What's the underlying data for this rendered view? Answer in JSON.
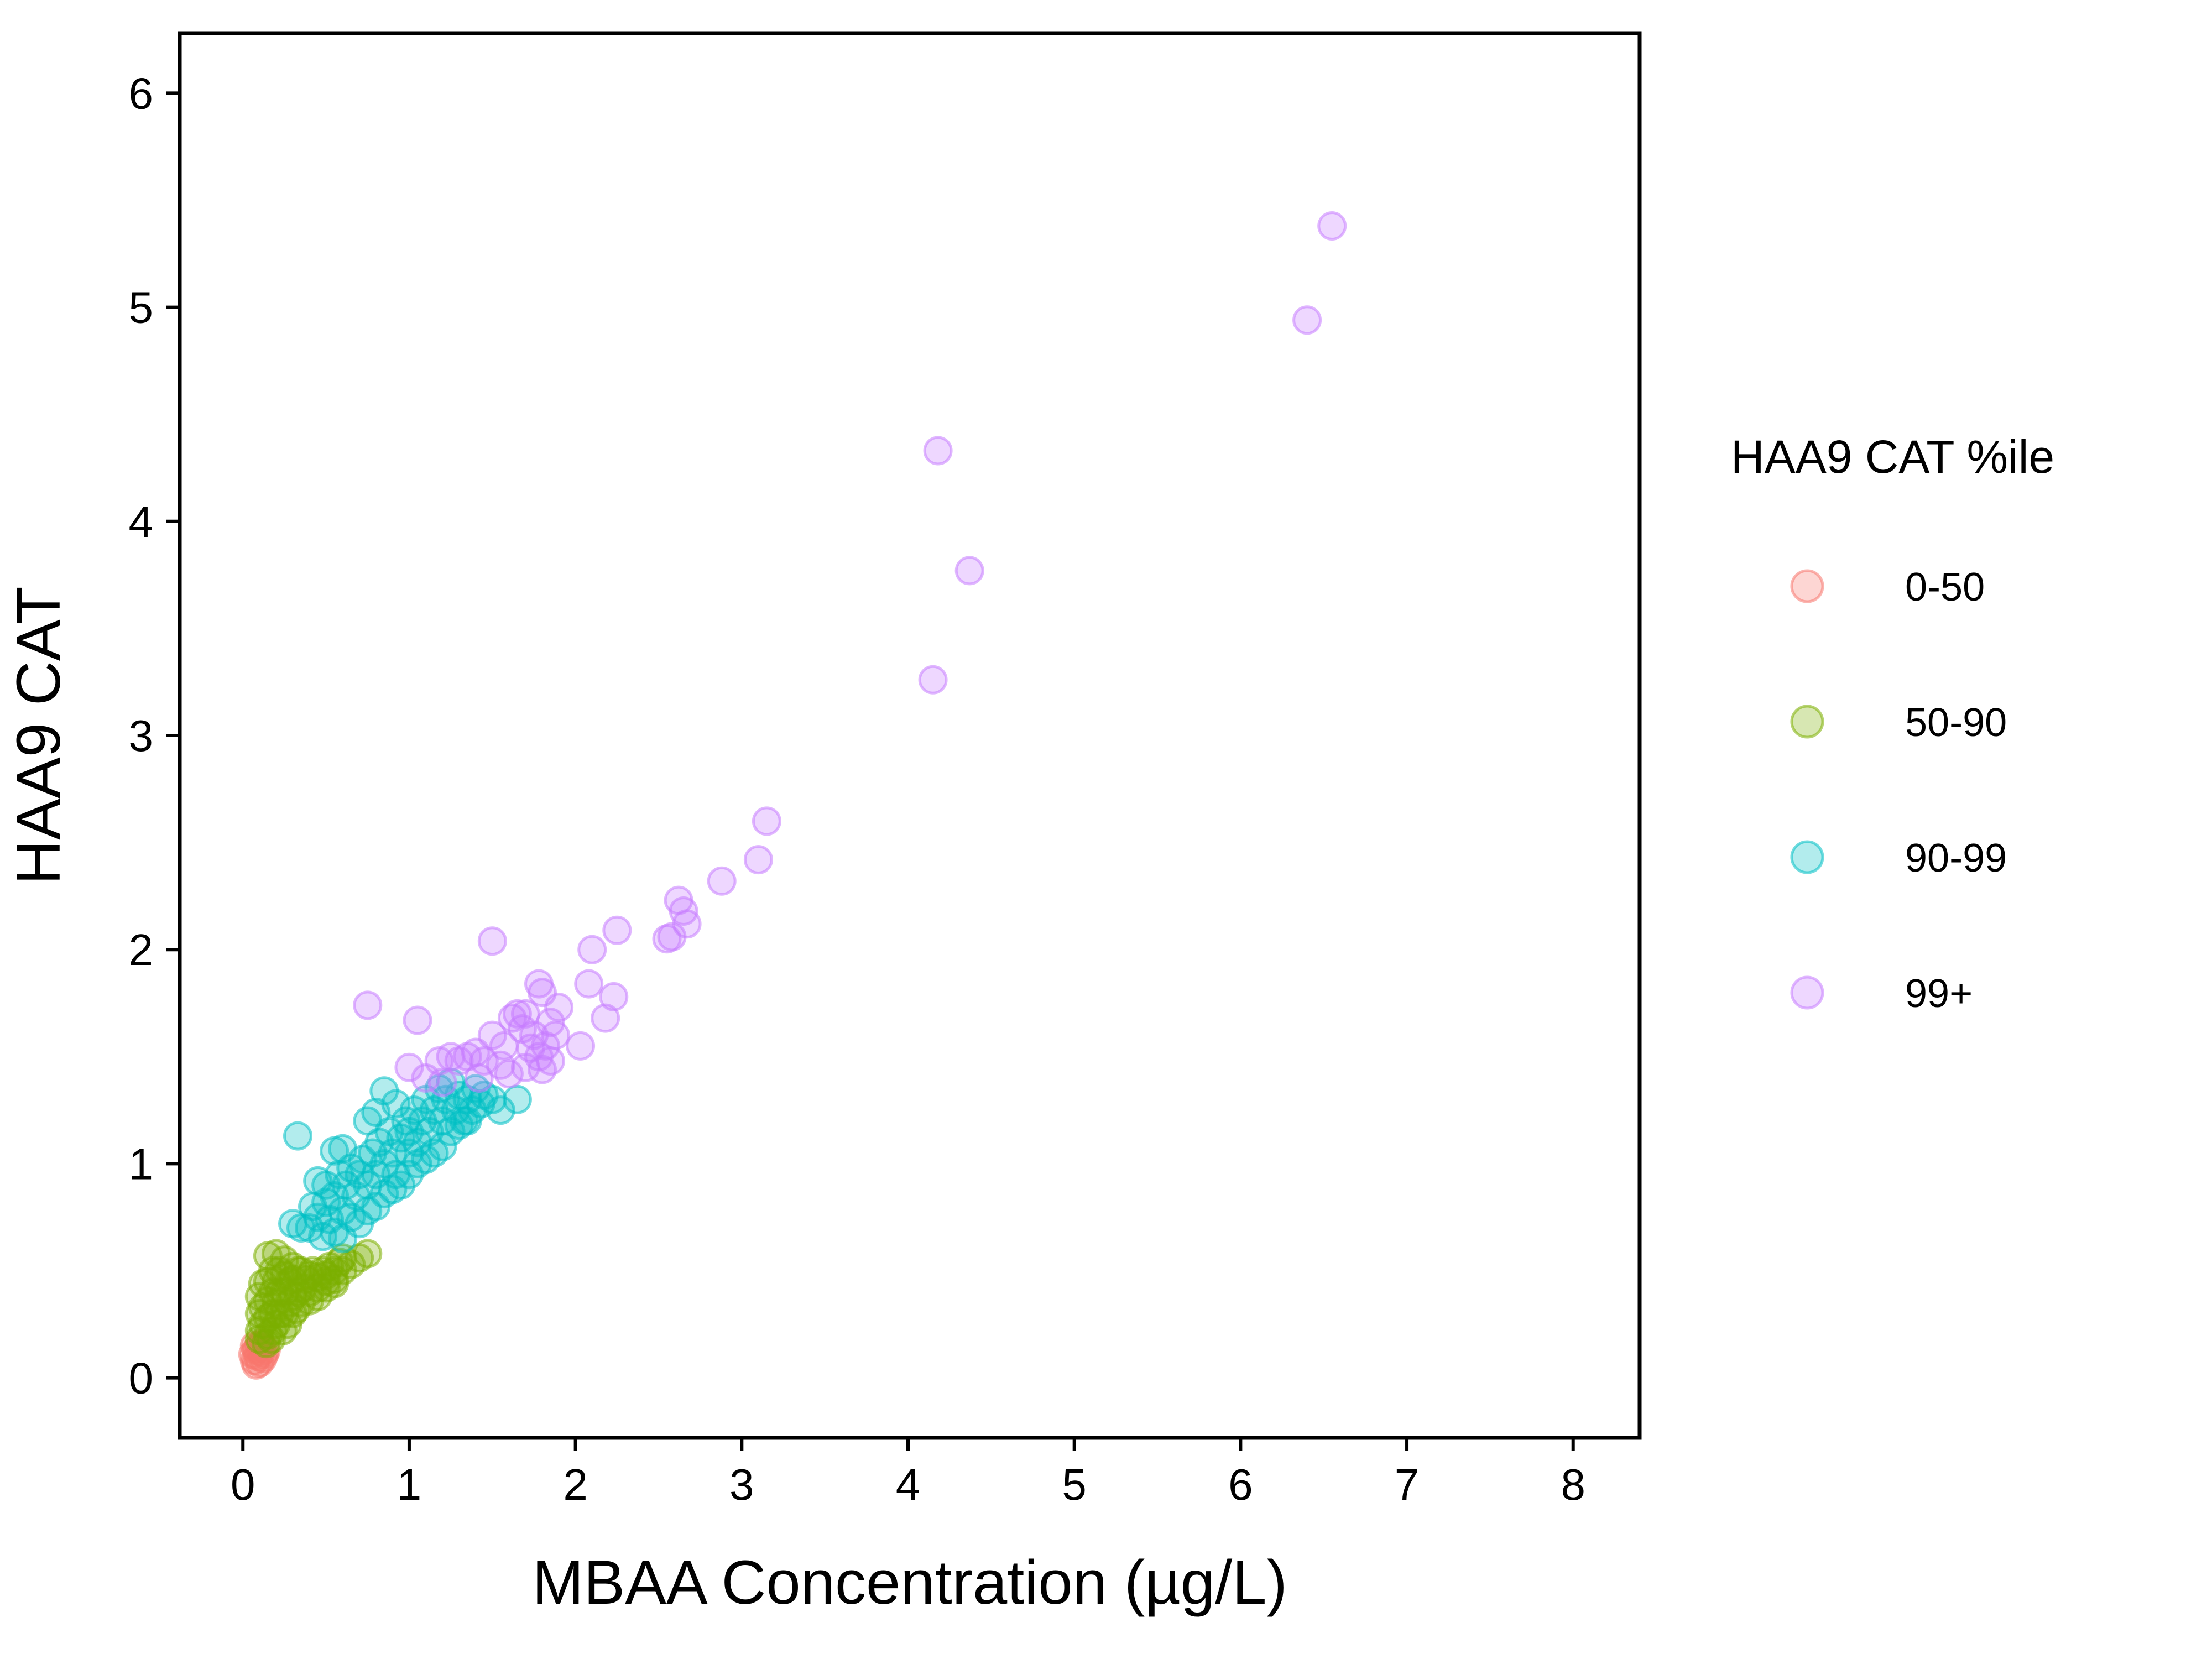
{
  "chart_data": {
    "type": "scatter",
    "title": "",
    "xlabel": "MBAA Concentration (µg/L)",
    "ylabel": "HAA9 CAT",
    "xlim": [
      -0.38,
      8.4
    ],
    "ylim": [
      -0.28,
      6.28
    ],
    "x_ticks": [
      0,
      1,
      2,
      3,
      4,
      5,
      6,
      7,
      8
    ],
    "y_ticks": [
      0,
      1,
      2,
      3,
      4,
      5,
      6
    ],
    "grid": false,
    "legend": {
      "title": "HAA9 CAT %ile",
      "placement": "right"
    },
    "series": [
      {
        "name": "0-50",
        "color": "#F8766D",
        "points": [
          [
            0.07,
            0.08
          ],
          [
            0.08,
            0.06
          ],
          [
            0.09,
            0.1
          ],
          [
            0.1,
            0.07
          ],
          [
            0.11,
            0.12
          ],
          [
            0.12,
            0.09
          ],
          [
            0.08,
            0.13
          ],
          [
            0.1,
            0.15
          ],
          [
            0.13,
            0.11
          ],
          [
            0.06,
            0.11
          ],
          [
            0.09,
            0.14
          ],
          [
            0.12,
            0.14
          ],
          [
            0.14,
            0.13
          ],
          [
            0.11,
            0.16
          ],
          [
            0.07,
            0.15
          ]
        ]
      },
      {
        "name": "50-90",
        "color": "#7CAE00",
        "points": [
          [
            0.1,
            0.38
          ],
          [
            0.12,
            0.44
          ],
          [
            0.15,
            0.57
          ],
          [
            0.2,
            0.58
          ],
          [
            0.25,
            0.55
          ],
          [
            0.3,
            0.52
          ],
          [
            0.35,
            0.5
          ],
          [
            0.4,
            0.48
          ],
          [
            0.45,
            0.47
          ],
          [
            0.5,
            0.45
          ],
          [
            0.55,
            0.44
          ],
          [
            0.6,
            0.5
          ],
          [
            0.65,
            0.53
          ],
          [
            0.7,
            0.56
          ],
          [
            0.75,
            0.58
          ],
          [
            0.1,
            0.3
          ],
          [
            0.1,
            0.22
          ],
          [
            0.1,
            0.18
          ],
          [
            0.12,
            0.25
          ],
          [
            0.12,
            0.33
          ],
          [
            0.15,
            0.2
          ],
          [
            0.15,
            0.28
          ],
          [
            0.15,
            0.36
          ],
          [
            0.15,
            0.45
          ],
          [
            0.18,
            0.22
          ],
          [
            0.18,
            0.3
          ],
          [
            0.18,
            0.4
          ],
          [
            0.18,
            0.5
          ],
          [
            0.2,
            0.25
          ],
          [
            0.2,
            0.35
          ],
          [
            0.2,
            0.45
          ],
          [
            0.22,
            0.3
          ],
          [
            0.22,
            0.4
          ],
          [
            0.22,
            0.5
          ],
          [
            0.25,
            0.3
          ],
          [
            0.25,
            0.4
          ],
          [
            0.25,
            0.48
          ],
          [
            0.28,
            0.35
          ],
          [
            0.28,
            0.45
          ],
          [
            0.3,
            0.38
          ],
          [
            0.3,
            0.46
          ],
          [
            0.33,
            0.4
          ],
          [
            0.33,
            0.5
          ],
          [
            0.36,
            0.42
          ],
          [
            0.38,
            0.46
          ],
          [
            0.4,
            0.4
          ],
          [
            0.42,
            0.5
          ],
          [
            0.45,
            0.42
          ],
          [
            0.48,
            0.5
          ],
          [
            0.5,
            0.48
          ],
          [
            0.52,
            0.52
          ],
          [
            0.55,
            0.5
          ],
          [
            0.58,
            0.54
          ],
          [
            0.6,
            0.56
          ],
          [
            0.3,
            0.3
          ],
          [
            0.35,
            0.35
          ],
          [
            0.4,
            0.36
          ],
          [
            0.27,
            0.25
          ],
          [
            0.32,
            0.32
          ],
          [
            0.17,
            0.18
          ],
          [
            0.14,
            0.16
          ],
          [
            0.24,
            0.22
          ],
          [
            0.45,
            0.38
          ],
          [
            0.5,
            0.42
          ],
          [
            0.55,
            0.46
          ]
        ]
      },
      {
        "name": "90-99",
        "color": "#00BFC4",
        "points": [
          [
            0.33,
            1.13
          ],
          [
            0.45,
            0.92
          ],
          [
            0.55,
            1.06
          ],
          [
            0.6,
            1.07
          ],
          [
            0.85,
            1.34
          ],
          [
            0.8,
            1.24
          ],
          [
            0.75,
            1.2
          ],
          [
            0.92,
            1.28
          ],
          [
            0.3,
            0.72
          ],
          [
            0.35,
            0.7
          ],
          [
            0.4,
            0.7
          ],
          [
            0.42,
            0.8
          ],
          [
            0.45,
            0.75
          ],
          [
            0.5,
            0.82
          ],
          [
            0.5,
            0.9
          ],
          [
            0.55,
            0.85
          ],
          [
            0.58,
            0.95
          ],
          [
            0.6,
            0.78
          ],
          [
            0.62,
            0.9
          ],
          [
            0.65,
            0.98
          ],
          [
            0.68,
            0.85
          ],
          [
            0.7,
            0.95
          ],
          [
            0.72,
            1.02
          ],
          [
            0.75,
            0.9
          ],
          [
            0.78,
            1.05
          ],
          [
            0.8,
            0.95
          ],
          [
            0.82,
            1.1
          ],
          [
            0.85,
            1.0
          ],
          [
            0.88,
            1.15
          ],
          [
            0.9,
            1.05
          ],
          [
            0.92,
            0.95
          ],
          [
            0.95,
            1.12
          ],
          [
            0.98,
            1.2
          ],
          [
            1.0,
            1.05
          ],
          [
            1.0,
            1.15
          ],
          [
            1.03,
            1.25
          ],
          [
            1.05,
            1.1
          ],
          [
            1.08,
            1.2
          ],
          [
            1.1,
            1.3
          ],
          [
            1.12,
            1.15
          ],
          [
            1.15,
            1.25
          ],
          [
            1.18,
            1.35
          ],
          [
            1.2,
            1.2
          ],
          [
            1.22,
            1.3
          ],
          [
            1.25,
            1.38
          ],
          [
            1.28,
            1.25
          ],
          [
            1.3,
            1.32
          ],
          [
            1.33,
            1.2
          ],
          [
            1.35,
            1.3
          ],
          [
            1.38,
            1.25
          ],
          [
            1.4,
            1.35
          ],
          [
            1.43,
            1.28
          ],
          [
            1.45,
            1.32
          ],
          [
            1.5,
            1.3
          ],
          [
            1.55,
            1.25
          ],
          [
            1.65,
            1.3
          ],
          [
            0.9,
            0.88
          ],
          [
            0.95,
            0.9
          ],
          [
            1.0,
            0.95
          ],
          [
            1.05,
            1.0
          ],
          [
            1.1,
            1.02
          ],
          [
            1.15,
            1.05
          ],
          [
            1.2,
            1.08
          ],
          [
            0.7,
            0.72
          ],
          [
            0.8,
            0.8
          ],
          [
            0.75,
            0.78
          ],
          [
            0.65,
            0.75
          ],
          [
            1.25,
            1.15
          ],
          [
            1.3,
            1.18
          ],
          [
            1.35,
            1.2
          ],
          [
            0.55,
            0.68
          ],
          [
            0.6,
            0.65
          ],
          [
            0.48,
            0.66
          ],
          [
            0.52,
            0.74
          ],
          [
            0.85,
            0.86
          ]
        ]
      },
      {
        "name": "99+",
        "color": "#C77CFF",
        "points": [
          [
            6.55,
            5.38
          ],
          [
            6.4,
            4.94
          ],
          [
            4.18,
            4.33
          ],
          [
            4.37,
            3.77
          ],
          [
            4.15,
            3.26
          ],
          [
            3.15,
            2.6
          ],
          [
            3.1,
            2.42
          ],
          [
            2.88,
            2.32
          ],
          [
            2.62,
            2.23
          ],
          [
            2.65,
            2.18
          ],
          [
            2.67,
            2.12
          ],
          [
            2.55,
            2.05
          ],
          [
            2.58,
            2.06
          ],
          [
            2.25,
            2.09
          ],
          [
            2.1,
            2.0
          ],
          [
            2.08,
            1.84
          ],
          [
            2.23,
            1.78
          ],
          [
            2.18,
            1.68
          ],
          [
            2.03,
            1.55
          ],
          [
            1.5,
            2.04
          ],
          [
            0.75,
            1.74
          ],
          [
            1.05,
            1.67
          ],
          [
            1.78,
            1.84
          ],
          [
            1.8,
            1.8
          ],
          [
            1.9,
            1.73
          ],
          [
            1.85,
            1.66
          ],
          [
            1.7,
            1.7
          ],
          [
            1.65,
            1.7
          ],
          [
            1.68,
            1.63
          ],
          [
            1.75,
            1.6
          ],
          [
            1.82,
            1.55
          ],
          [
            1.78,
            1.5
          ],
          [
            1.85,
            1.48
          ],
          [
            1.7,
            1.45
          ],
          [
            1.6,
            1.42
          ],
          [
            1.55,
            1.46
          ],
          [
            1.5,
            1.6
          ],
          [
            1.45,
            1.48
          ],
          [
            1.4,
            1.52
          ],
          [
            1.35,
            1.5
          ],
          [
            1.3,
            1.48
          ],
          [
            1.25,
            1.5
          ],
          [
            1.18,
            1.48
          ],
          [
            1.42,
            1.4
          ],
          [
            1.0,
            1.45
          ],
          [
            1.1,
            1.4
          ],
          [
            1.2,
            1.38
          ],
          [
            1.62,
            1.68
          ],
          [
            1.57,
            1.55
          ],
          [
            1.88,
            1.6
          ],
          [
            1.73,
            1.54
          ],
          [
            1.8,
            1.44
          ]
        ]
      }
    ]
  }
}
